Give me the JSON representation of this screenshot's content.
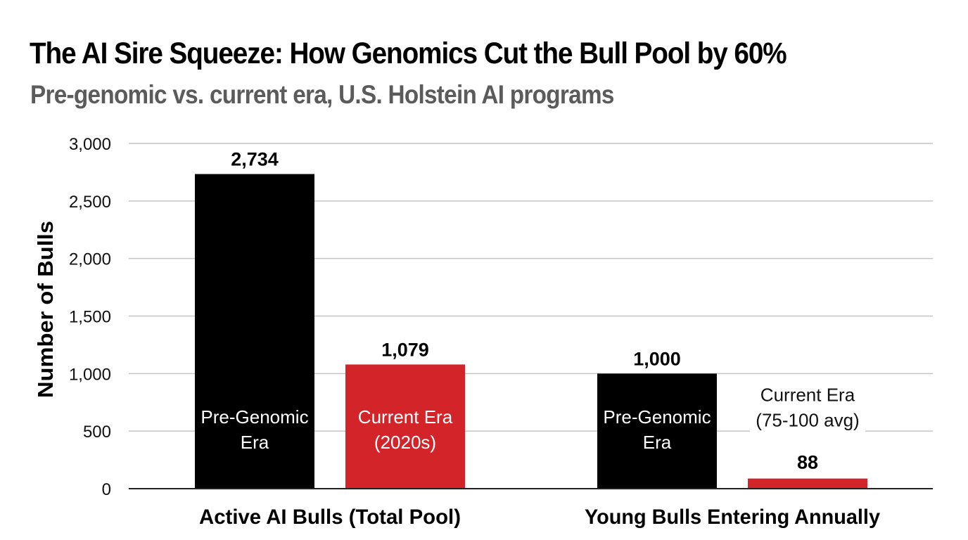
{
  "chart_data": {
    "type": "bar",
    "title": "The AI Sire Squeeze: How Genomics Cut the Bull Pool by 60%",
    "subtitle": "Pre-genomic vs. current era, U.S. Holstein AI programs",
    "xlabel": "",
    "ylabel": "Number of Bulls",
    "ylim": [
      0,
      3000
    ],
    "yticks": [
      0,
      500,
      1000,
      1500,
      2000,
      2500,
      3000
    ],
    "ytick_labels": [
      "0",
      "500",
      "1,000",
      "1,500",
      "2,000",
      "2,500",
      "3,000"
    ],
    "grid": true,
    "categories": [
      "Active AI Bulls (Total Pool)",
      "Young Bulls Entering Annually"
    ],
    "series": [
      {
        "name": "Pre-Genomic Era",
        "color": "#000000",
        "values": [
          2734,
          1000
        ],
        "value_labels": [
          "2,734",
          "1,000"
        ],
        "bar_labels": [
          [
            "Pre-Genomic",
            "Era"
          ],
          [
            "Pre-Genomic",
            "Era"
          ]
        ]
      },
      {
        "name": "Current Era",
        "color": "#D3242A",
        "values": [
          1079,
          88
        ],
        "value_labels": [
          "1,079",
          "88"
        ],
        "bar_labels": [
          [
            "Current Era",
            "(2020s)"
          ],
          [
            "Current Era",
            "(75-100 avg)"
          ]
        ]
      }
    ]
  }
}
